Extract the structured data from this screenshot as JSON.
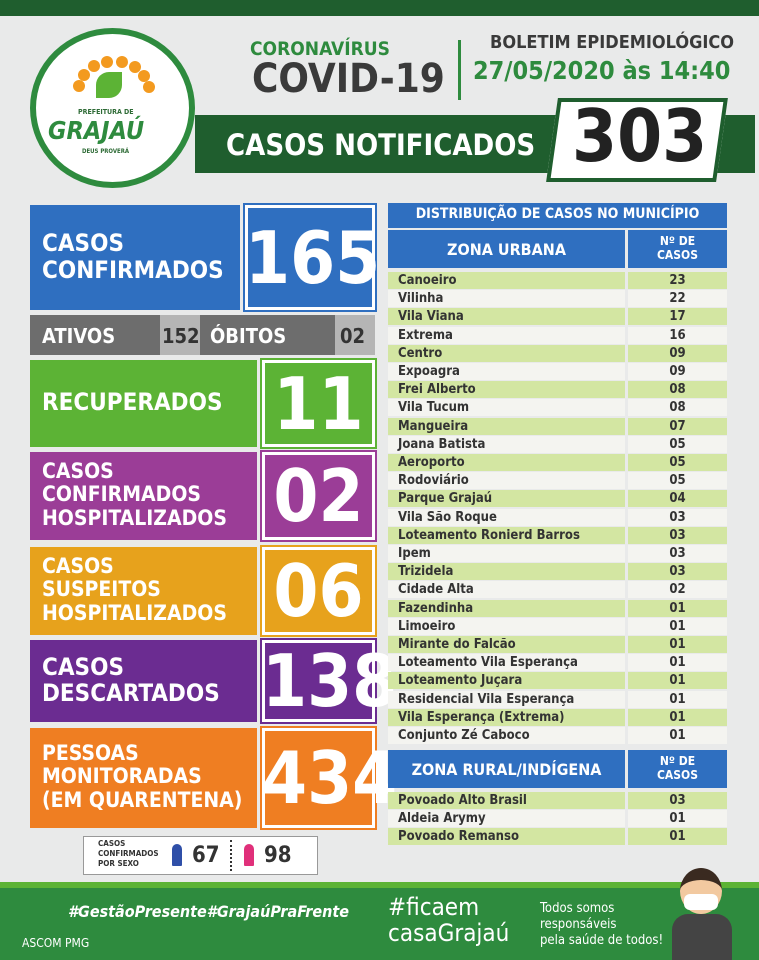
{
  "header": {
    "logo": {
      "top": "PREFEITURA DE",
      "name": "GRAJAÚ",
      "motto": "DEUS PROVERÁ"
    },
    "kicker": "CORONAVÍRUS",
    "title": "COVID-19",
    "bulletin": "BOLETIM EPIDEMIOLÓGICO",
    "datetime": "27/05/2020 às 14:40",
    "notified": {
      "label": "CASOS NOTIFICADOS",
      "value": "303"
    }
  },
  "boxes": [
    {
      "label": [
        "CASOS",
        "CONFIRMADOS"
      ],
      "value": "165"
    },
    {
      "label": [
        "RECUPERADOS"
      ],
      "value": "11"
    },
    {
      "label": [
        "CASOS",
        "CONFIRMADOS",
        "HOSPITALIZADOS"
      ],
      "value": "02"
    },
    {
      "label": [
        "CASOS",
        "SUSPEITOS",
        "HOSPITALIZADOS"
      ],
      "value": "06"
    },
    {
      "label": [
        "CASOS",
        "DESCARTADOS"
      ],
      "value": "138"
    },
    {
      "label": [
        "PESSOAS",
        "MONITORADAS",
        "(EM QUARENTENA)"
      ],
      "value": "434"
    }
  ],
  "status": {
    "active_label": "ATIVOS",
    "active": "152",
    "deaths_label": "ÓBITOS",
    "deaths": "02"
  },
  "sex": {
    "label": [
      "CASOS",
      "CONFIRMADOS",
      "POR SEXO"
    ],
    "male": "67",
    "female": "98"
  },
  "table": {
    "title": "DISTRIBUIÇÃO DE CASOS NO MUNICÍPIO",
    "urban": {
      "header": "ZONA URBANA",
      "count_header": [
        "Nº DE",
        "CASOS"
      ],
      "rows": [
        [
          "Canoeiro",
          "23"
        ],
        [
          "Vilinha",
          "22"
        ],
        [
          "Vila Viana",
          "17"
        ],
        [
          "Extrema",
          "16"
        ],
        [
          "Centro",
          "09"
        ],
        [
          "Expoagra",
          "09"
        ],
        [
          "Frei Alberto",
          "08"
        ],
        [
          "Vila Tucum",
          "08"
        ],
        [
          "Mangueira",
          "07"
        ],
        [
          "Joana Batista",
          "05"
        ],
        [
          "Aeroporto",
          "05"
        ],
        [
          "Rodoviário",
          "05"
        ],
        [
          "Parque Grajaú",
          "04"
        ],
        [
          "Vila São Roque",
          "03"
        ],
        [
          "Loteamento Ronierd Barros",
          "03"
        ],
        [
          "Ipem",
          "03"
        ],
        [
          "Trizidela",
          "03"
        ],
        [
          "Cidade Alta",
          "02"
        ],
        [
          "Fazendinha",
          "01"
        ],
        [
          "Limoeiro",
          "01"
        ],
        [
          "Mirante do Falcão",
          "01"
        ],
        [
          "Loteamento Vila Esperança",
          "01"
        ],
        [
          "Loteamento Juçara",
          "01"
        ],
        [
          "Residencial Vila Esperança",
          "01"
        ],
        [
          "Vila Esperança (Extrema)",
          "01"
        ],
        [
          "Conjunto Zé Caboco",
          "01"
        ]
      ]
    },
    "rural": {
      "header": "ZONA RURAL/INDÍGENA",
      "count_header": [
        "Nº DE",
        "CASOS"
      ],
      "rows": [
        [
          "Povoado Alto Brasil",
          "03"
        ],
        [
          "Aldeia Arymy",
          "01"
        ],
        [
          "Povoado Remanso",
          "01"
        ]
      ]
    }
  },
  "footer": {
    "hashtags": "#GestãoPresente#GrajaúPraFrente",
    "credit": "ASCOM PMG",
    "campaign": [
      "#ficaem",
      "casaGrajaú"
    ],
    "slogan": [
      "Todos somos",
      "responsáveis",
      "pela saúde de todos!"
    ]
  }
}
